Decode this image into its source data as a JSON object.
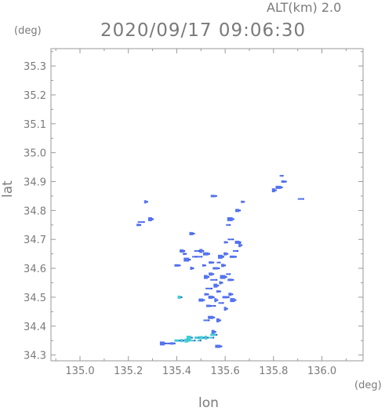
{
  "header": {
    "altitude_label": "ALT(km)  2.0",
    "timestamp": "2020/09/17  09:06:30"
  },
  "axes": {
    "y_unit": "(deg)",
    "x_unit": "(deg)",
    "x_label": "lon",
    "y_label": "lat"
  },
  "colors": {
    "axis": "#999999",
    "text": "#7a7a7a",
    "echo_blue": "#4a6bf0",
    "echo_dark": "#2f4fd8",
    "echo_cyan": "#33cccc"
  },
  "chart_data": {
    "type": "scatter",
    "title": "",
    "xlabel": "lon",
    "ylabel": "lat",
    "xlim": [
      134.88,
      136.17
    ],
    "ylim": [
      34.28,
      35.36
    ],
    "x_ticks": [
      "135.0",
      "135.2",
      "135.4",
      "135.6",
      "135.8",
      "136.0"
    ],
    "y_ticks": [
      "34.3",
      "34.4",
      "34.5",
      "34.6",
      "34.7",
      "34.8",
      "34.9",
      "35.0",
      "35.1",
      "35.2",
      "35.3"
    ],
    "grid": false,
    "series": [
      {
        "color": "#4a6bf0",
        "points": [
          [
            135.83,
            34.92
          ],
          [
            135.84,
            34.9
          ],
          [
            135.82,
            34.88
          ],
          [
            135.8,
            34.87
          ],
          [
            135.91,
            34.84
          ],
          [
            135.67,
            34.83
          ],
          [
            135.65,
            34.8
          ],
          [
            135.62,
            34.77
          ],
          [
            135.61,
            34.75
          ],
          [
            135.55,
            34.85
          ],
          [
            135.27,
            34.83
          ],
          [
            135.29,
            34.77
          ],
          [
            135.25,
            34.76
          ],
          [
            135.24,
            34.75
          ],
          [
            135.65,
            34.69
          ],
          [
            135.66,
            34.68
          ],
          [
            135.64,
            34.66
          ],
          [
            135.63,
            34.64
          ],
          [
            135.6,
            34.65
          ],
          [
            135.58,
            34.64
          ],
          [
            135.57,
            34.62
          ],
          [
            135.54,
            34.62
          ],
          [
            135.52,
            34.65
          ],
          [
            135.5,
            34.66
          ],
          [
            135.49,
            34.64
          ],
          [
            135.51,
            34.61
          ],
          [
            135.54,
            34.58
          ],
          [
            135.59,
            34.57
          ],
          [
            135.61,
            34.58
          ],
          [
            135.62,
            34.56
          ],
          [
            135.58,
            34.55
          ],
          [
            135.56,
            34.54
          ],
          [
            135.53,
            34.53
          ],
          [
            135.52,
            34.51
          ],
          [
            135.54,
            34.5
          ],
          [
            135.56,
            34.49
          ],
          [
            135.58,
            34.48
          ],
          [
            135.6,
            34.5
          ],
          [
            135.62,
            34.51
          ],
          [
            135.63,
            34.49
          ],
          [
            135.55,
            34.47
          ],
          [
            135.53,
            34.47
          ],
          [
            135.54,
            34.43
          ],
          [
            135.57,
            34.42
          ],
          [
            135.52,
            34.42
          ],
          [
            135.43,
            34.65
          ],
          [
            135.42,
            34.66
          ],
          [
            135.44,
            34.63
          ],
          [
            135.47,
            34.64
          ],
          [
            135.4,
            34.61
          ],
          [
            135.46,
            34.6
          ],
          [
            135.52,
            34.57
          ],
          [
            135.55,
            34.56
          ],
          [
            135.57,
            34.52
          ],
          [
            135.5,
            34.49
          ],
          [
            135.6,
            34.46
          ],
          [
            135.48,
            34.66
          ],
          [
            135.56,
            34.6
          ],
          [
            135.59,
            34.61
          ],
          [
            135.34,
            34.34
          ],
          [
            135.36,
            34.34
          ],
          [
            135.38,
            34.34
          ],
          [
            135.57,
            34.33
          ],
          [
            135.55,
            34.38
          ],
          [
            135.62,
            34.7
          ],
          [
            135.6,
            34.69
          ],
          [
            135.46,
            34.72
          ]
        ]
      },
      {
        "color": "#33cccc",
        "points": [
          [
            135.4,
            34.35
          ],
          [
            135.42,
            34.35
          ],
          [
            135.44,
            34.35
          ],
          [
            135.46,
            34.35
          ],
          [
            135.48,
            34.36
          ],
          [
            135.5,
            34.36
          ],
          [
            135.52,
            34.36
          ],
          [
            135.54,
            34.36
          ],
          [
            135.55,
            34.37
          ],
          [
            135.41,
            34.5
          ],
          [
            135.45,
            34.36
          ],
          [
            135.49,
            34.35
          ]
        ]
      }
    ]
  }
}
